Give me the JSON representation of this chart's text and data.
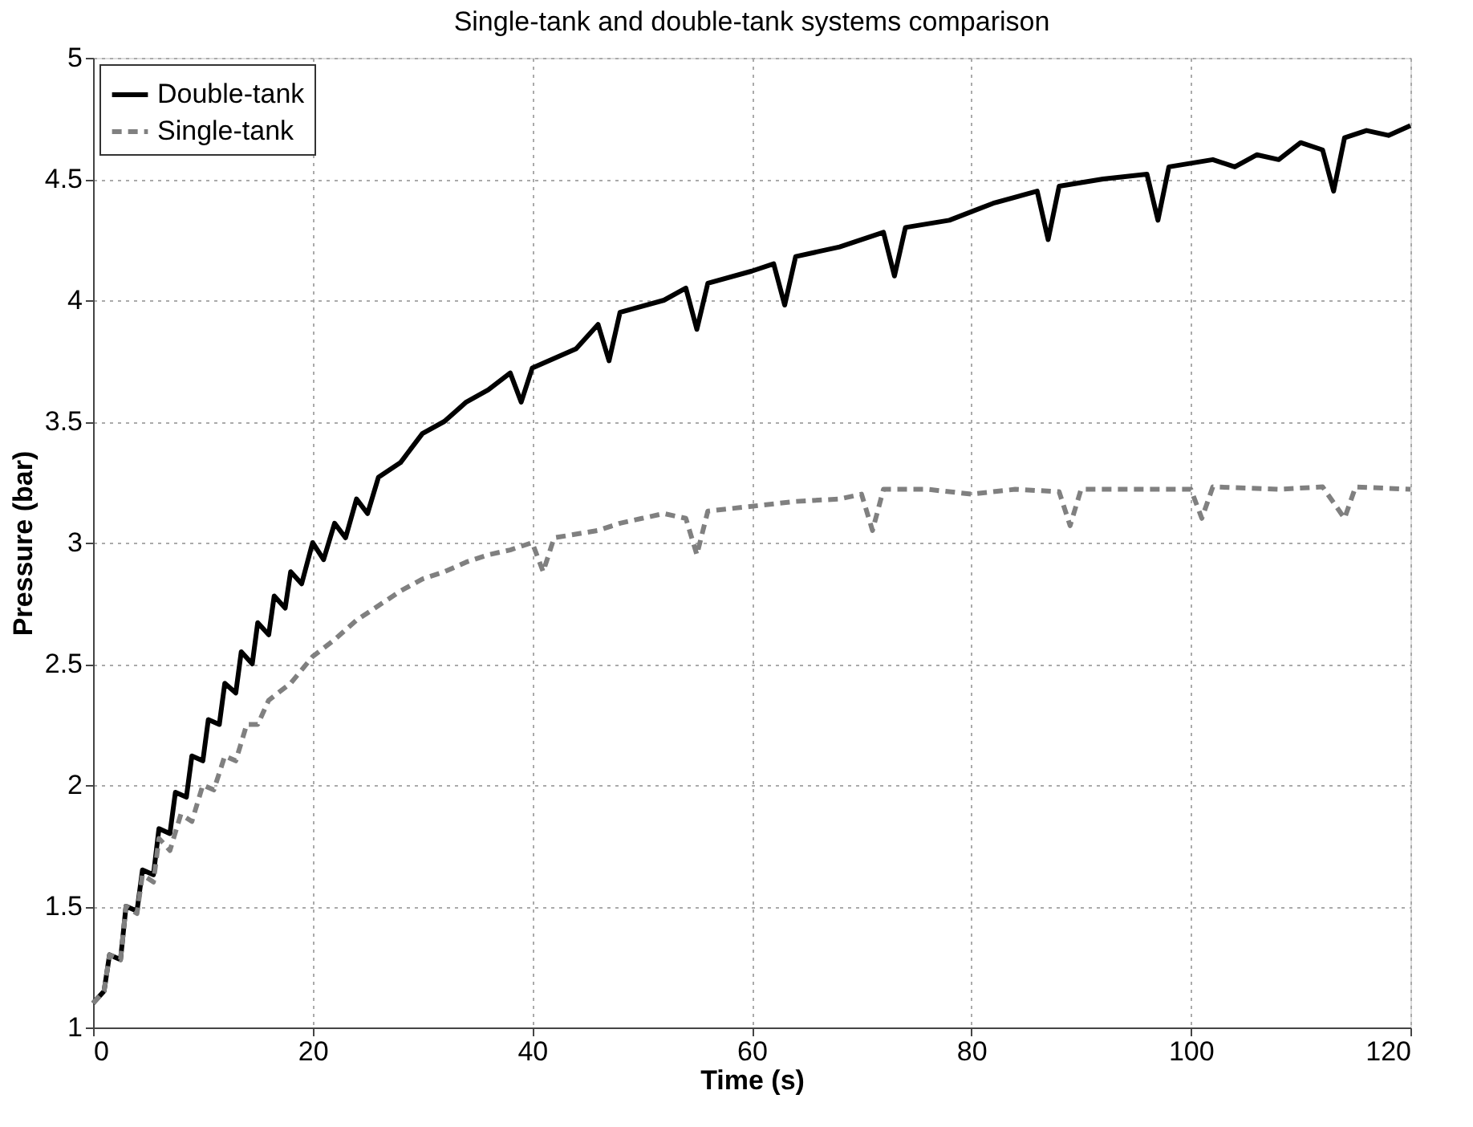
{
  "chart_data": {
    "type": "line",
    "title": "Single-tank and double-tank systems comparison",
    "xlabel": "Time (s)",
    "ylabel": "Pressure (bar)",
    "xlim": [
      0,
      120
    ],
    "xticks": [
      0,
      20,
      40,
      60,
      80,
      100,
      120
    ],
    "ylim": [
      1,
      5
    ],
    "yticks": [
      1,
      1.5,
      2,
      2.5,
      3,
      3.5,
      4,
      4.5,
      5
    ],
    "grid": true,
    "legend": "top left",
    "marker": "none",
    "series": [
      {
        "name": "Double-tank",
        "color": "#000000",
        "line_style": "solid",
        "x": [
          0,
          1,
          1.5,
          2.5,
          3,
          4,
          4.5,
          5.5,
          6,
          7,
          7.5,
          8.5,
          9,
          10,
          10.5,
          11.5,
          12,
          13,
          13.5,
          14.5,
          15,
          16,
          16.5,
          17.5,
          18,
          19,
          20,
          21,
          22,
          23,
          24,
          25,
          26,
          28,
          30,
          32,
          34,
          36,
          38,
          39,
          40,
          44,
          46,
          47,
          48,
          52,
          54,
          55,
          56,
          60,
          62,
          63,
          64,
          68,
          72,
          73,
          74,
          78,
          82,
          86,
          87,
          88,
          92,
          96,
          97,
          98,
          102,
          104,
          106,
          108,
          110,
          112,
          113,
          114,
          116,
          118,
          120
        ],
        "values": [
          1.1,
          1.15,
          1.3,
          1.28,
          1.5,
          1.48,
          1.65,
          1.63,
          1.82,
          1.8,
          1.97,
          1.95,
          2.12,
          2.1,
          2.27,
          2.25,
          2.42,
          2.38,
          2.55,
          2.5,
          2.67,
          2.62,
          2.78,
          2.73,
          2.88,
          2.83,
          3.0,
          2.93,
          3.08,
          3.02,
          3.18,
          3.12,
          3.27,
          3.33,
          3.45,
          3.5,
          3.58,
          3.63,
          3.7,
          3.58,
          3.72,
          3.8,
          3.9,
          3.75,
          3.95,
          4.0,
          4.05,
          3.88,
          4.07,
          4.12,
          4.15,
          3.98,
          4.18,
          4.22,
          4.28,
          4.1,
          4.3,
          4.33,
          4.4,
          4.45,
          4.25,
          4.47,
          4.5,
          4.52,
          4.33,
          4.55,
          4.58,
          4.55,
          4.6,
          4.58,
          4.65,
          4.62,
          4.45,
          4.67,
          4.7,
          4.68,
          4.72
        ]
      },
      {
        "name": "Single-tank",
        "color": "#808080",
        "line_style": "dashed",
        "x": [
          0,
          1,
          1.5,
          2.5,
          3,
          4,
          4.5,
          5.5,
          6,
          7,
          8,
          9,
          10,
          11,
          12,
          13,
          14,
          15,
          16,
          18,
          20,
          22,
          24,
          26,
          28,
          30,
          32,
          34,
          36,
          38,
          40,
          41,
          42,
          46,
          48,
          50,
          52,
          54,
          55,
          56,
          60,
          64,
          68,
          70,
          71,
          72,
          76,
          80,
          84,
          88,
          89,
          90,
          96,
          100,
          101,
          102,
          108,
          112,
          114,
          115,
          120
        ],
        "values": [
          1.1,
          1.15,
          1.3,
          1.28,
          1.5,
          1.47,
          1.63,
          1.6,
          1.78,
          1.73,
          1.88,
          1.85,
          2.0,
          1.98,
          2.12,
          2.1,
          2.25,
          2.25,
          2.35,
          2.42,
          2.53,
          2.6,
          2.68,
          2.74,
          2.8,
          2.85,
          2.88,
          2.92,
          2.95,
          2.97,
          3.0,
          2.88,
          3.02,
          3.05,
          3.08,
          3.1,
          3.12,
          3.1,
          2.95,
          3.13,
          3.15,
          3.17,
          3.18,
          3.2,
          3.05,
          3.22,
          3.22,
          3.2,
          3.22,
          3.21,
          3.07,
          3.22,
          3.22,
          3.22,
          3.1,
          3.23,
          3.22,
          3.23,
          3.1,
          3.23,
          3.22
        ]
      }
    ]
  }
}
